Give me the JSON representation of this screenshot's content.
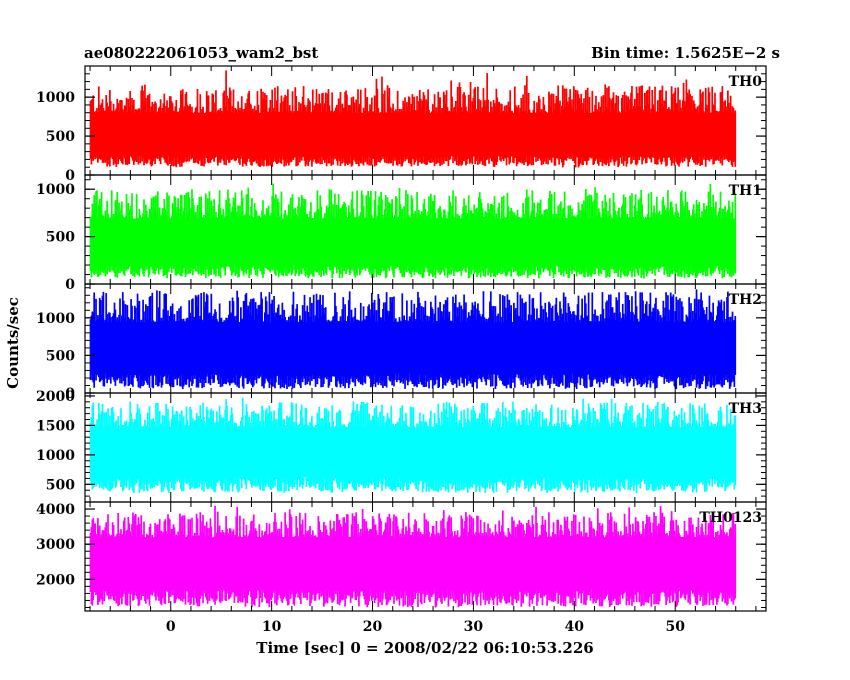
{
  "header": {
    "title": "ae080222061053_wam2_bst",
    "bin_time": "Bin time: 1.5625E−2 s"
  },
  "chart_data": {
    "type": "line",
    "style": "histogram-step",
    "xlabel": "Time [sec] 0 = 2008/02/22 06:10:53.226",
    "ylabel": "Counts/sec",
    "xlim": [
      -8.5,
      59
    ],
    "data_xrange": [
      -8,
      56
    ],
    "x_ticks": [
      0,
      10,
      20,
      30,
      40,
      50
    ],
    "x_tick_labels": [
      "0",
      "10",
      "20",
      "30",
      "40",
      "50"
    ],
    "x_minor_step": 2,
    "grid": false,
    "panels": [
      {
        "name": "TH0",
        "color": "#ff0000",
        "ylim": [
          0,
          1400
        ],
        "y_ticks": [
          0,
          500,
          1000
        ],
        "y_tick_labels": [
          "0",
          "500",
          "1000"
        ],
        "y_minor_step": 100,
        "base_level": 500,
        "peak_level": 1150,
        "min_level": 100,
        "max_level": 1400
      },
      {
        "name": "TH1",
        "color": "#00ff00",
        "ylim": [
          0,
          1150
        ],
        "y_ticks": [
          0,
          500,
          1000
        ],
        "y_tick_labels": [
          "0",
          "500",
          "1000"
        ],
        "y_minor_step": 100,
        "base_level": 430,
        "peak_level": 1000,
        "min_level": 60,
        "max_level": 1100
      },
      {
        "name": "TH2",
        "color": "#0000ff",
        "ylim": [
          0,
          1450
        ],
        "y_ticks": [
          0,
          500,
          1000
        ],
        "y_tick_labels": [
          "0",
          "500",
          "1000"
        ],
        "y_minor_step": 100,
        "base_level": 600,
        "peak_level": 1350,
        "min_level": 50,
        "max_level": 1450
      },
      {
        "name": "TH3",
        "color": "#00ffff",
        "ylim": [
          200,
          2050
        ],
        "y_ticks": [
          500,
          1000,
          1500,
          2000
        ],
        "y_tick_labels": [
          "500",
          "1000",
          "1500",
          "2000"
        ],
        "y_minor_step": 100,
        "base_level": 1100,
        "peak_level": 1900,
        "min_level": 350,
        "max_level": 2000
      },
      {
        "name": "TH0123",
        "color": "#ff00ff",
        "ylim": [
          1100,
          4200
        ],
        "y_ticks": [
          2000,
          3000,
          4000
        ],
        "y_tick_labels": [
          "2000",
          "3000",
          "4000"
        ],
        "y_minor_step": 200,
        "base_level": 2600,
        "peak_level": 3900,
        "min_level": 1200,
        "max_level": 4150
      }
    ]
  }
}
